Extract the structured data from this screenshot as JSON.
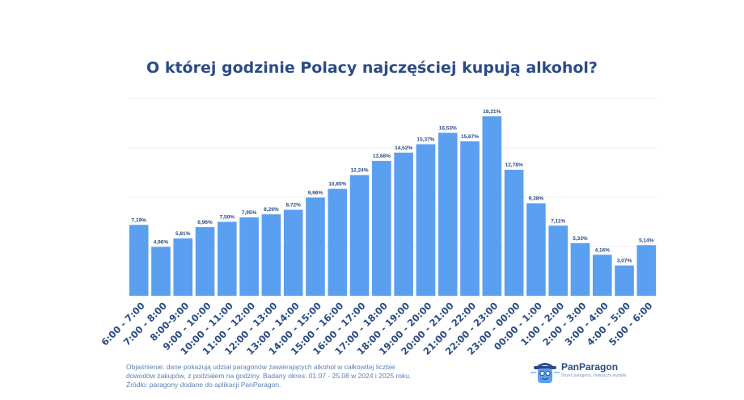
{
  "title": "O której godzinie Polacy najczęściej kupują alkohol?",
  "colors": {
    "bar": "#5a9ff0",
    "text": "#2a4b86",
    "grid": "#eceef3",
    "note": "#5c7fb8"
  },
  "chart_data": {
    "type": "bar",
    "title": "O której godzinie Polacy najczęściej kupują alkohol?",
    "xlabel": "",
    "ylabel": "",
    "ylim": [
      0,
      20
    ],
    "grid": true,
    "legend": "none",
    "categories": [
      "6:00 - 7:00",
      "7:00 - 8:00",
      "8:00-9:00",
      "9:00 - 10:00",
      "10:00 - 11:00",
      "11:00 - 12:00",
      "12:00 - 13:00",
      "13:00 - 14:00",
      "14:00 - 15:00",
      "15:00 - 16:00",
      "16:00 - 17:00",
      "17:00 - 18:00",
      "18:00 - 19:00",
      "19:00 - 20:00",
      "20:00 - 21:00",
      "21:00 - 22:00",
      "22:00 - 23:00",
      "23:00 - 00:00",
      "00:00 - 1:00",
      "1:00 - 2:00",
      "2:00 - 3:00",
      "3:00 - 4:00",
      "4:00 - 5:00",
      "5:00 - 6:00"
    ],
    "values": [
      7.19,
      4.96,
      5.81,
      6.96,
      7.5,
      7.95,
      8.26,
      8.72,
      9.96,
      10.85,
      12.24,
      13.68,
      14.52,
      15.37,
      16.53,
      15.67,
      18.21,
      12.78,
      9.38,
      7.11,
      5.33,
      4.16,
      3.07,
      5.14
    ],
    "value_labels": [
      "7,19%",
      "4,96%",
      "5,81%",
      "6,96%",
      "7,50%",
      "7,95%",
      "8,26%",
      "8,72%",
      "9,96%",
      "10,85%",
      "12,24%",
      "13,68%",
      "14,52%",
      "15,37%",
      "16,53%",
      "15,67%",
      "18,21%",
      "12,78%",
      "9,38%",
      "7,11%",
      "5,33%",
      "4,16%",
      "3,07%",
      "5,14%"
    ]
  },
  "note": {
    "line1": "Objaśnienie: dane pokazują udział paragonów zawierających alkohol w całkowitej liczbie",
    "line2": "dowodów zakupów, z podziałem na godziny. Badany okres: 01.07 - 25.08 w 2024 i 2025 roku.",
    "line3": "Źródło: paragony dodane do aplikacji PanParagon."
  },
  "logo": {
    "name": "PanParagon",
    "tagline": "Strzeż paragonu, zwłaszcza wydatki"
  }
}
